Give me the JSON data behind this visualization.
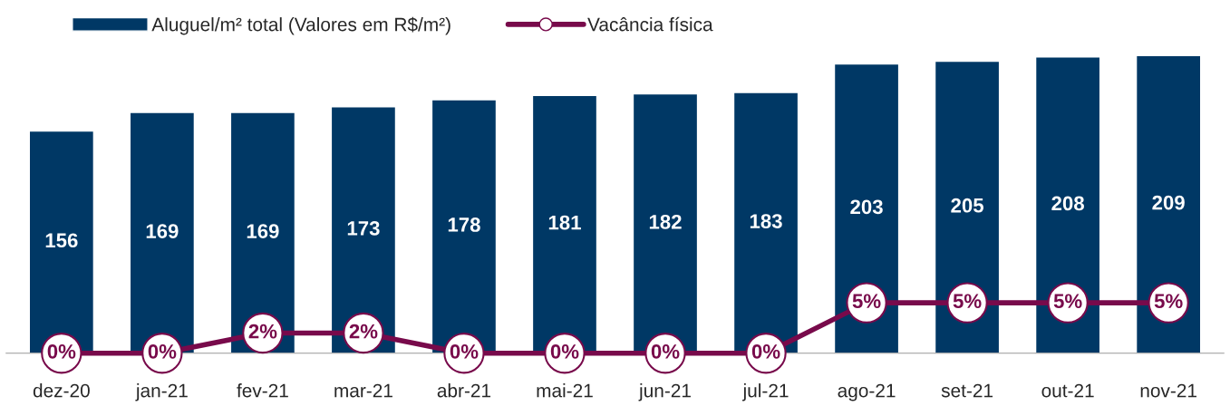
{
  "chart_data": {
    "type": "bar",
    "categories": [
      "dez-20",
      "jan-21",
      "fev-21",
      "mar-21",
      "abr-21",
      "mai-21",
      "jun-21",
      "jul-21",
      "ago-21",
      "set-21",
      "out-21",
      "nov-21"
    ],
    "series": [
      {
        "name": "Aluguel/m² total (Valores em R$/m²)",
        "color": "#003865",
        "values": [
          156,
          169,
          169,
          173,
          178,
          181,
          182,
          183,
          203,
          205,
          208,
          209
        ]
      },
      {
        "name": "Vacância física",
        "type": "line",
        "axis": "y2",
        "color": "#780a4b",
        "marker": "circle",
        "values": [
          0,
          0,
          2,
          2,
          0,
          0,
          0,
          0,
          5,
          5,
          5,
          5
        ],
        "value_labels": [
          "0%",
          "0%",
          "2%",
          "2%",
          "0%",
          "0%",
          "0%",
          "0%",
          "5%",
          "5%",
          "5%",
          "5%"
        ]
      }
    ],
    "data_labels": true,
    "tick_labels": "x",
    "grid": false,
    "legend": "top left"
  }
}
